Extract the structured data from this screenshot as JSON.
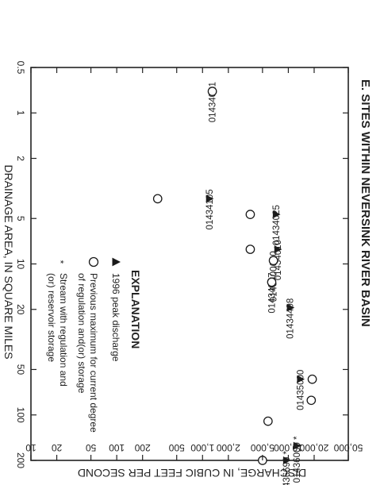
{
  "chart_data": {
    "type": "scatter",
    "title": "E. SITES WITHIN NEVERSINK RIVER BASIN",
    "xlabel": "DRAINAGE AREA, IN SQUARE MILES",
    "ylabel": "DISCHARGE, IN CUBIC FEET PER SECOND",
    "x_scale": "log",
    "y_scale": "log",
    "xlim": [
      0.5,
      200
    ],
    "ylim": [
      10,
      50000
    ],
    "x_ticks": [
      {
        "value": 0.5,
        "label": "0.5"
      },
      {
        "value": 1,
        "label": "1"
      },
      {
        "value": 2,
        "label": "2"
      },
      {
        "value": 5,
        "label": "5"
      },
      {
        "value": 10,
        "label": "10"
      },
      {
        "value": 20,
        "label": "20"
      },
      {
        "value": 50,
        "label": "50"
      },
      {
        "value": 100,
        "label": "100"
      },
      {
        "value": 200,
        "label": "200"
      }
    ],
    "y_ticks": [
      {
        "value": 10,
        "label": "10"
      },
      {
        "value": 20,
        "label": "20"
      },
      {
        "value": 50,
        "label": "50"
      },
      {
        "value": 100,
        "label": "100"
      },
      {
        "value": 200,
        "label": "200"
      },
      {
        "value": 500,
        "label": "500"
      },
      {
        "value": 1000,
        "label": "1,000"
      },
      {
        "value": 2000,
        "label": "2,000"
      },
      {
        "value": 5000,
        "label": "5,000"
      },
      {
        "value": 10000,
        "label": "10,000"
      },
      {
        "value": 20000,
        "label": "20,000"
      },
      {
        "value": 50000,
        "label": "50,000"
      }
    ],
    "grid": false,
    "series": [
      {
        "name": "1996 peak discharge",
        "marker": "filled-triangle",
        "points": [
          {
            "x": 0.72,
            "y": 1300,
            "label": "01434021"
          },
          {
            "x": 3.7,
            "y": 1200,
            "label": "01434105"
          },
          {
            "x": 4.7,
            "y": 7200,
            "label": "01434025"
          },
          {
            "x": 8.0,
            "y": 7500,
            "label": "01434010"
          },
          {
            "x": 9.5,
            "y": 6700,
            "label": "0143400680"
          },
          {
            "x": 13.2,
            "y": 6400,
            "label": "01434017"
          },
          {
            "x": 19.5,
            "y": 10500,
            "label": "01434498"
          },
          {
            "x": 58,
            "y": 13800,
            "label": "01435000"
          },
          {
            "x": 160,
            "y": 12500,
            "label": "01436000"
          },
          {
            "x": 220,
            "y": 9500,
            "label": "01436690"
          }
        ]
      },
      {
        "name": "Previous maximum for current degree of regulation and(or) storage",
        "marker": "open-circle",
        "points": [
          {
            "x": 0.72,
            "y": 1300
          },
          {
            "x": 3.7,
            "y": 300
          },
          {
            "x": 4.7,
            "y": 3600
          },
          {
            "x": 8.0,
            "y": 3600
          },
          {
            "x": 9.5,
            "y": 6700
          },
          {
            "x": 13.2,
            "y": 6400
          },
          {
            "x": 58,
            "y": 19000
          },
          {
            "x": 80,
            "y": 18500
          },
          {
            "x": 110,
            "y": 5800
          },
          {
            "x": 220,
            "y": 5000
          }
        ]
      }
    ],
    "regulated_stations": [
      "01436000",
      "01436690"
    ],
    "explanation": {
      "title": "EXPLANATION",
      "items": [
        {
          "symbol": "filled-triangle",
          "text": [
            "1996 peak discharge"
          ]
        },
        {
          "symbol": "open-circle",
          "text": [
            "Previous maximum for current degree",
            "of regulation and(or) storage"
          ]
        },
        {
          "symbol": "asterisk",
          "text": [
            "Stream with regulation and",
            "(or) reservoir storage"
          ]
        }
      ]
    }
  }
}
